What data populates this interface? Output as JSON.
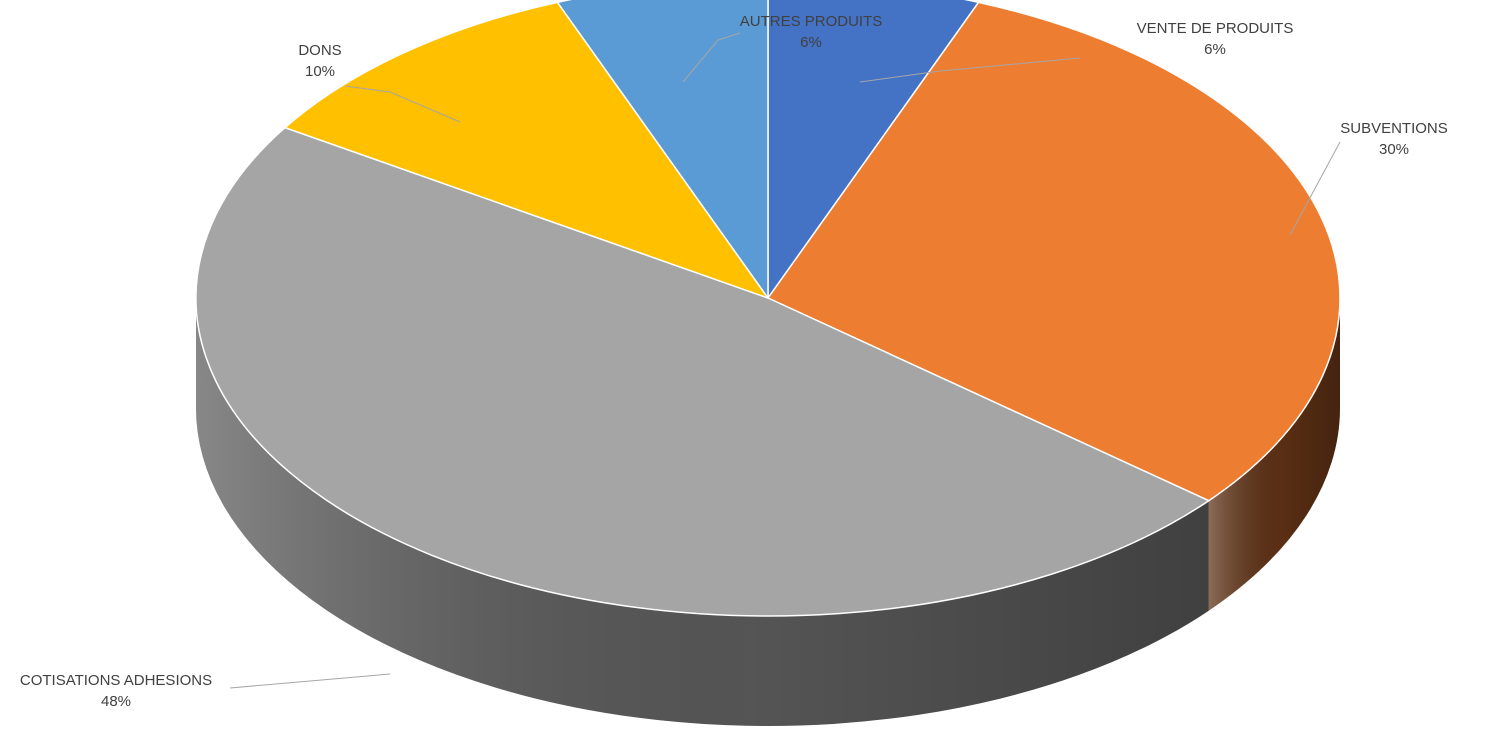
{
  "chart_data": {
    "type": "pie",
    "title": "",
    "slices": [
      {
        "label": "VENTE DE PRODUITS",
        "value": 6,
        "value_label": "6%",
        "color": "#4472C4",
        "side_color": "#2B4B82"
      },
      {
        "label": "SUBVENTIONS",
        "value": 30,
        "value_label": "30%",
        "color": "#ED7D31",
        "side_color": "#5F3115"
      },
      {
        "label": "COTISATIONS ADHESIONS",
        "value": 48,
        "value_label": "48%",
        "color": "#A5A5A5",
        "side_color": "#595959"
      },
      {
        "label": "DONS",
        "value": 10,
        "value_label": "10%",
        "color": "#FFC000",
        "side_color": "#8F6C00"
      },
      {
        "label": "AUTRES PRODUITS",
        "value": 6,
        "value_label": "6%",
        "color": "#5B9BD5",
        "side_color": "#2E5E8C"
      }
    ],
    "style": "3d",
    "legend": "none"
  }
}
